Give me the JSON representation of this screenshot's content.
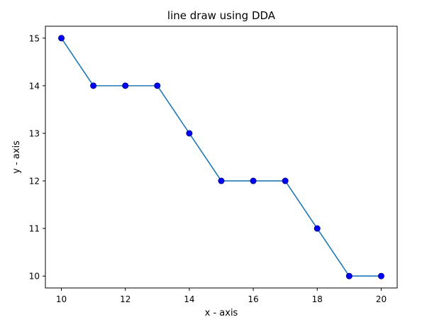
{
  "chart_data": {
    "type": "line",
    "title": "line draw using DDA",
    "xlabel": "x - axis",
    "ylabel": "y - axis",
    "x": [
      10,
      11,
      12,
      13,
      14,
      15,
      16,
      17,
      18,
      19,
      20
    ],
    "series": [
      {
        "values": [
          15,
          14,
          14,
          14,
          13,
          12,
          12,
          12,
          11,
          10,
          10
        ]
      }
    ],
    "xlim": [
      9.5,
      20.5
    ],
    "ylim": [
      9.75,
      15.25
    ],
    "xticks": [
      "10",
      "12",
      "14",
      "16",
      "18",
      "20"
    ],
    "yticks": [
      "10",
      "11",
      "12",
      "13",
      "14",
      "15"
    ],
    "grid": false,
    "line_color": "#1f77b4",
    "marker_color": "#0000ff",
    "marker_edge_color": "#00008b"
  }
}
